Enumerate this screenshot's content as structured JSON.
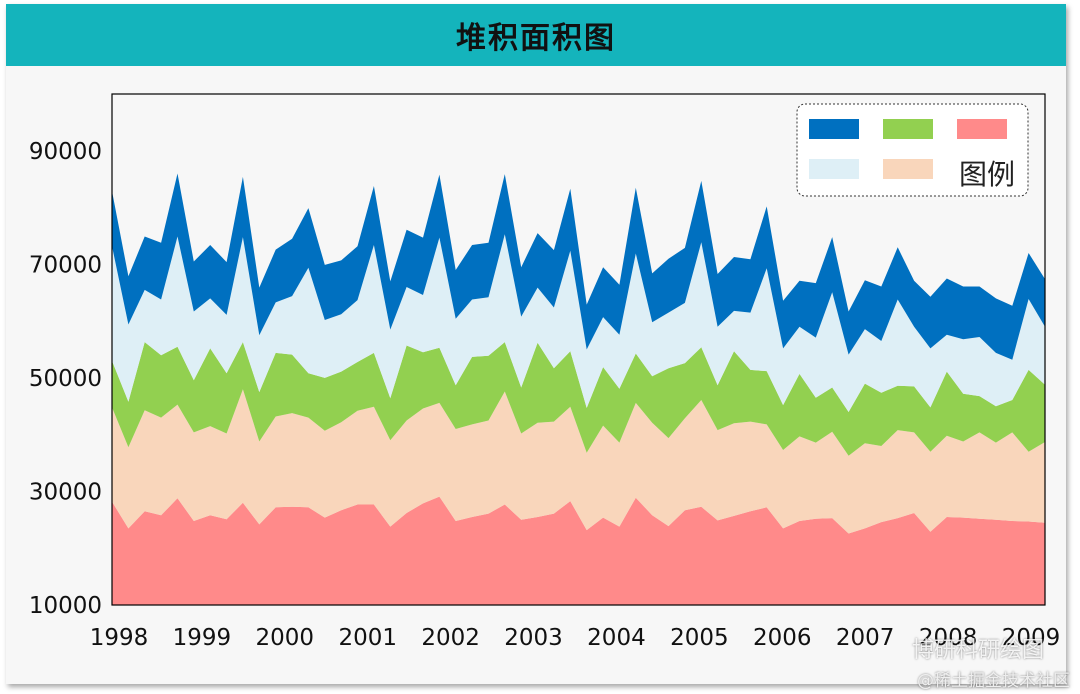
{
  "title": "堆积面积图",
  "chart_data": {
    "type": "area",
    "stacked": true,
    "ylim": [
      10000,
      100000
    ],
    "yticks": [
      10000,
      30000,
      50000,
      70000,
      90000
    ],
    "xticks": [
      "1998",
      "1999",
      "2000",
      "2001",
      "2002",
      "2003",
      "2004",
      "2005",
      "2006",
      "2007",
      "2008",
      "2009"
    ],
    "legend_title": "图例",
    "legend_position": "top-right",
    "series": [
      {
        "color": "#ff8a8a",
        "values": [
          28200,
          23500,
          26500,
          25800,
          28800,
          24800,
          25800,
          25100,
          28000,
          24200,
          27200,
          27300,
          27200,
          25400,
          26700,
          27700,
          27700,
          23800,
          26200,
          27900,
          29100,
          24800,
          25500,
          26100,
          27700,
          25000,
          25500,
          26100,
          28300,
          23200,
          25400,
          23800,
          28900,
          25800,
          23900,
          26700,
          27300,
          24900,
          25700,
          26500,
          27200,
          23500,
          24800,
          25200,
          25300,
          22600,
          23500,
          24600,
          25300,
          26200,
          22900,
          25500,
          25400,
          25200,
          25000,
          24800,
          24700,
          24500
        ]
      },
      {
        "color": "#f9d6bb",
        "values": [
          16600,
          14300,
          17800,
          17200,
          16500,
          15600,
          15700,
          15100,
          20000,
          14600,
          16000,
          16500,
          15800,
          15300,
          15500,
          16500,
          17200,
          15200,
          16300,
          16700,
          16500,
          16200,
          16300,
          16400,
          19900,
          15200,
          16600,
          16200,
          16600,
          13600,
          16200,
          14800,
          16700,
          16300,
          15500,
          16200,
          18800,
          15900,
          16300,
          15800,
          14600,
          13800,
          14900,
          13400,
          15200,
          13700,
          15000,
          13400,
          15500,
          14200,
          14100,
          14300,
          13400,
          15200,
          13600,
          15600,
          12300,
          14200
        ]
      },
      {
        "color": "#92d050",
        "values": [
          8200,
          8000,
          12000,
          11000,
          10200,
          9200,
          13700,
          10600,
          8300,
          8700,
          11200,
          10300,
          7800,
          9300,
          8900,
          8600,
          9500,
          7400,
          13200,
          9900,
          9700,
          7700,
          11900,
          11400,
          8700,
          8100,
          14100,
          9400,
          9800,
          7900,
          10300,
          9500,
          8700,
          8200,
          12300,
          9700,
          9300,
          7900,
          12700,
          9100,
          9400,
          7900,
          11000,
          7900,
          7800,
          7700,
          10500,
          9400,
          7800,
          8100,
          7800,
          11300,
          8400,
          6400,
          6400,
          5700,
          14400,
          10100
        ]
      },
      {
        "color": "#deeff6",
        "values": [
          20200,
          13600,
          9200,
          9800,
          19400,
          12100,
          8800,
          10300,
          18500,
          10000,
          8900,
          10300,
          18600,
          10200,
          10100,
          10900,
          19000,
          12100,
          10300,
          10100,
          19400,
          11700,
          10100,
          10300,
          19000,
          12500,
          9700,
          10700,
          17700,
          10300,
          8800,
          9500,
          17600,
          9500,
          9800,
          10600,
          18500,
          10300,
          7100,
          10100,
          18100,
          10000,
          8300,
          10600,
          16800,
          10100,
          9600,
          9100,
          15200,
          10500,
          10400,
          6500,
          9600,
          10400,
          9400,
          7100,
          12500,
          10200
        ]
      },
      {
        "color": "#0070c0",
        "values": [
          9700,
          8500,
          9400,
          10000,
          11100,
          8800,
          9400,
          9300,
          10600,
          8400,
          9300,
          10100,
          10500,
          9700,
          9500,
          9500,
          10400,
          8500,
          10100,
          10100,
          11100,
          8600,
          9600,
          9600,
          10600,
          8700,
          9600,
          10100,
          10900,
          7900,
          8800,
          8800,
          11600,
          8600,
          9500,
          9700,
          10800,
          9300,
          9500,
          9400,
          10900,
          8400,
          8100,
          9600,
          9700,
          7600,
          8600,
          9600,
          9200,
          8100,
          9100,
          9900,
          9300,
          8900,
          9600,
          9500,
          8100,
          8400
        ]
      }
    ]
  },
  "watermark": {
    "line1": "博研科研绘图",
    "line2": "@稀土掘金技术社区"
  }
}
